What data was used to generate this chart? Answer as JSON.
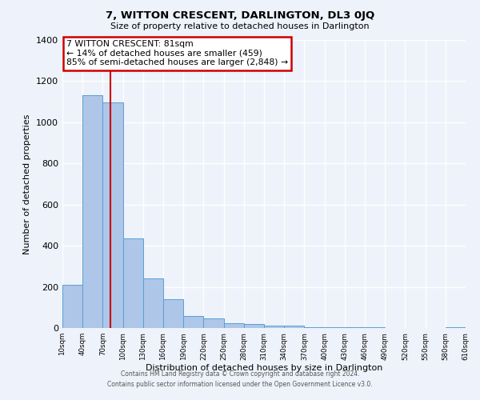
{
  "title": "7, WITTON CRESCENT, DARLINGTON, DL3 0JQ",
  "subtitle": "Size of property relative to detached houses in Darlington",
  "xlabel": "Distribution of detached houses by size in Darlington",
  "ylabel": "Number of detached properties",
  "bar_color": "#aec6e8",
  "bar_edge_color": "#5a9fd4",
  "background_color": "#eef2fa",
  "grid_color": "#ffffff",
  "red_line_x": 81,
  "bin_edges": [
    10,
    40,
    70,
    100,
    130,
    160,
    190,
    220,
    250,
    280,
    310,
    340,
    370,
    400,
    430,
    460,
    490,
    520,
    550,
    580,
    610
  ],
  "bin_counts": [
    210,
    1130,
    1095,
    435,
    240,
    140,
    60,
    47,
    25,
    18,
    10,
    10,
    5,
    5,
    5,
    5,
    0,
    0,
    0,
    5
  ],
  "ylim": [
    0,
    1400
  ],
  "yticks": [
    0,
    200,
    400,
    600,
    800,
    1000,
    1200,
    1400
  ],
  "annotation_line1": "7 WITTON CRESCENT: 81sqm",
  "annotation_line2": "← 14% of detached houses are smaller (459)",
  "annotation_line3": "85% of semi-detached houses are larger (2,848) →",
  "annotation_box_color": "#ffffff",
  "annotation_box_edge": "#cc0000",
  "footer1": "Contains HM Land Registry data © Crown copyright and database right 2024.",
  "footer2": "Contains public sector information licensed under the Open Government Licence v3.0."
}
